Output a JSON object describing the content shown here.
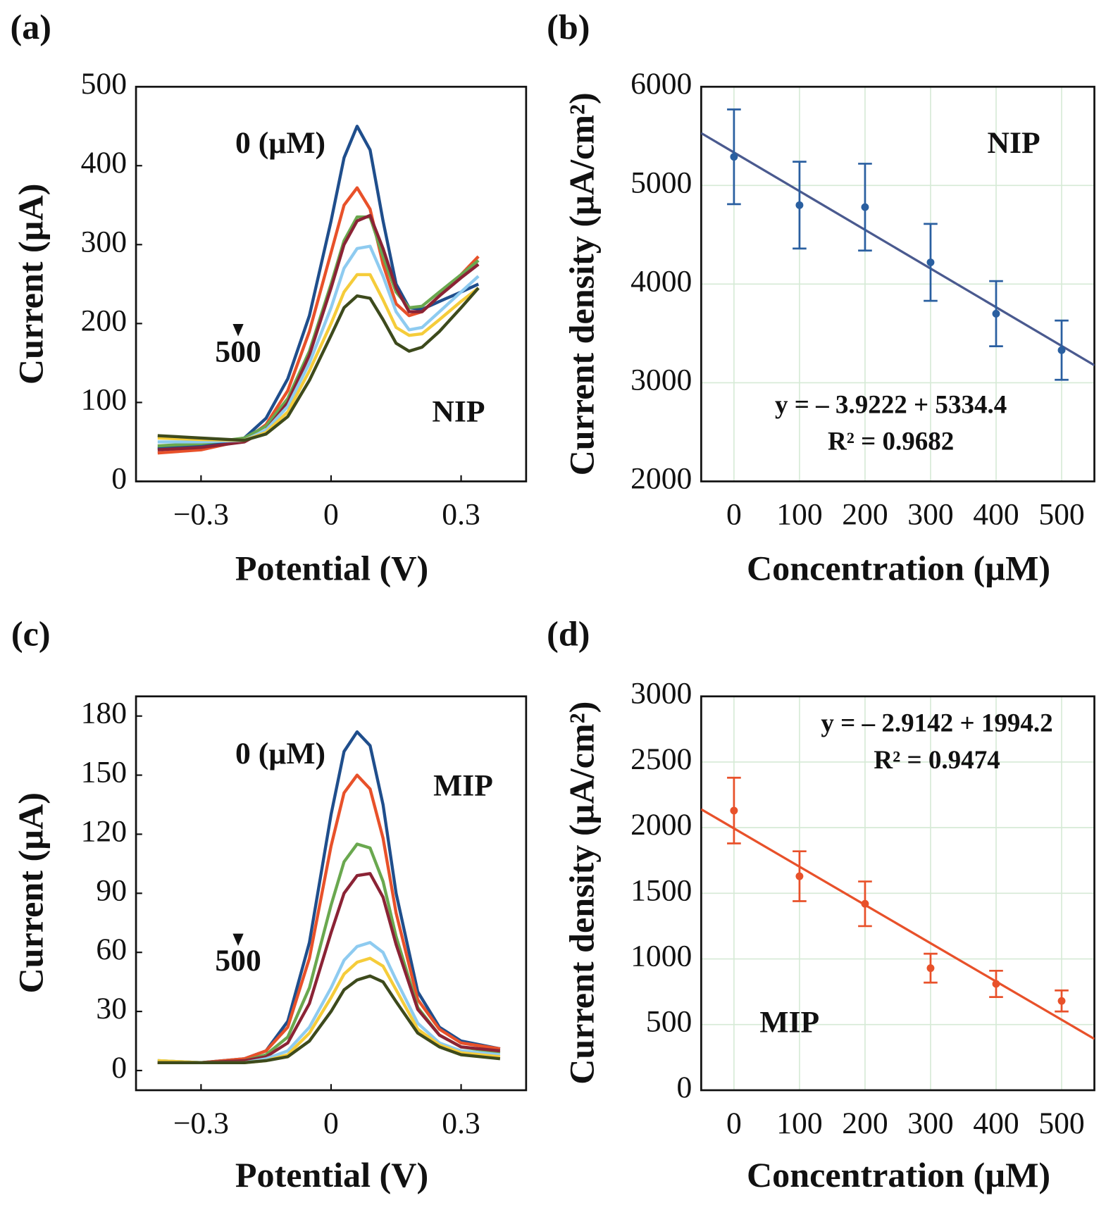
{
  "chart_data": [
    {
      "type": "line",
      "panel_label": "(a)",
      "xlabel": "Potential (V)",
      "ylabel": "Current (µA)",
      "xlim": [
        -0.45,
        0.45
      ],
      "ylim": [
        0,
        500
      ],
      "xticks": [
        {
          "value": -0.3,
          "label": "−0.3"
        },
        0,
        0.3
      ],
      "yticks": [
        0,
        100,
        200,
        300,
        400,
        500
      ],
      "annotations": [
        "0 (µM)",
        "500",
        "NIP"
      ],
      "x": [
        -0.4,
        -0.3,
        -0.2,
        -0.15,
        -0.1,
        -0.05,
        0,
        0.03,
        0.06,
        0.09,
        0.12,
        0.15,
        0.18,
        0.21,
        0.25,
        0.3,
        0.34
      ],
      "series": [
        {
          "color": "#1f4e8c",
          "values": [
            42,
            45,
            55,
            80,
            130,
            210,
            330,
            410,
            450,
            420,
            330,
            250,
            220,
            218,
            228,
            240,
            250
          ]
        },
        {
          "color": "#e8512a",
          "values": [
            36,
            40,
            52,
            72,
            115,
            190,
            290,
            350,
            372,
            345,
            275,
            225,
            210,
            215,
            235,
            262,
            285
          ]
        },
        {
          "color": "#6aa84f",
          "values": [
            45,
            48,
            55,
            70,
            105,
            165,
            250,
            305,
            335,
            335,
            285,
            240,
            220,
            222,
            240,
            262,
            280
          ]
        },
        {
          "color": "#8b2335",
          "values": [
            40,
            43,
            50,
            65,
            100,
            160,
            245,
            300,
            330,
            337,
            295,
            245,
            215,
            215,
            235,
            258,
            275
          ]
        },
        {
          "color": "#8ecbf0",
          "values": [
            50,
            50,
            52,
            65,
            95,
            150,
            220,
            270,
            295,
            298,
            260,
            215,
            192,
            195,
            215,
            240,
            260
          ]
        },
        {
          "color": "#f5cc3a",
          "values": [
            55,
            53,
            52,
            62,
            88,
            140,
            200,
            240,
            262,
            262,
            230,
            195,
            185,
            187,
            205,
            228,
            245
          ]
        },
        {
          "color": "#3d4a1c",
          "values": [
            58,
            55,
            52,
            60,
            82,
            128,
            185,
            220,
            235,
            232,
            205,
            175,
            165,
            170,
            190,
            220,
            245
          ]
        }
      ]
    },
    {
      "type": "scatter",
      "panel_label": "(b)",
      "xlabel": "Concentration (µM)",
      "ylabel": "Current density (µA/cm²)",
      "xlim": [
        -50,
        550
      ],
      "ylim": [
        2000,
        6000
      ],
      "grid": true,
      "xticks": [
        0,
        100,
        200,
        300,
        400,
        500
      ],
      "yticks": [
        2000,
        3000,
        4000,
        5000,
        6000
      ],
      "annotations": [
        "NIP",
        "y = – 3.9222 + 5334.4",
        "R² = 0.9682"
      ],
      "color": "#2a5fa0",
      "x": [
        0,
        100,
        200,
        300,
        400,
        500
      ],
      "values": [
        5290,
        4800,
        4780,
        4220,
        3700,
        3330
      ],
      "errors": [
        480,
        440,
        440,
        390,
        330,
        300
      ],
      "fit": {
        "color": "#4a5a8f",
        "x": [
          -50,
          550
        ],
        "values": [
          5530,
          3177
        ]
      }
    },
    {
      "type": "line",
      "panel_label": "(c)",
      "xlabel": "Potential (V)",
      "ylabel": "Current (µA)",
      "xlim": [
        -0.45,
        0.45
      ],
      "ylim": [
        -10,
        190
      ],
      "xticks": [
        {
          "value": -0.3,
          "label": "−0.3"
        },
        0,
        0.3
      ],
      "yticks": [
        0,
        30,
        60,
        90,
        120,
        150,
        180
      ],
      "annotations": [
        "0 (µM)",
        "500",
        "MIP"
      ],
      "x": [
        -0.4,
        -0.3,
        -0.2,
        -0.15,
        -0.1,
        -0.05,
        0,
        0.03,
        0.06,
        0.09,
        0.12,
        0.15,
        0.2,
        0.25,
        0.3,
        0.39
      ],
      "series": [
        {
          "color": "#1f4e8c",
          "values": [
            4,
            4,
            6,
            10,
            25,
            65,
            130,
            162,
            172,
            165,
            135,
            90,
            40,
            22,
            15,
            11
          ]
        },
        {
          "color": "#e8512a",
          "values": [
            4,
            4,
            6,
            10,
            22,
            57,
            114,
            141,
            150,
            143,
            118,
            80,
            36,
            21,
            14,
            11
          ]
        },
        {
          "color": "#6aa84f",
          "values": [
            5,
            4,
            5,
            8,
            17,
            42,
            84,
            106,
            115,
            113,
            96,
            68,
            32,
            18,
            12,
            9
          ]
        },
        {
          "color": "#8b2335",
          "values": [
            4,
            4,
            5,
            7,
            14,
            34,
            70,
            90,
            99,
            100,
            88,
            64,
            31,
            18,
            12,
            10
          ]
        },
        {
          "color": "#8ecbf0",
          "values": [
            5,
            4,
            4,
            6,
            10,
            22,
            42,
            56,
            63,
            65,
            60,
            46,
            24,
            14,
            10,
            8
          ]
        },
        {
          "color": "#f5cc3a",
          "values": [
            5,
            4,
            4,
            5,
            8,
            19,
            37,
            49,
            55,
            57,
            53,
            41,
            21,
            13,
            9,
            7
          ]
        },
        {
          "color": "#3d4a1c",
          "values": [
            4,
            4,
            4,
            5,
            7,
            15,
            30,
            41,
            46,
            48,
            45,
            35,
            19,
            12,
            8,
            6
          ]
        }
      ]
    },
    {
      "type": "scatter",
      "panel_label": "(d)",
      "xlabel": "Concentration (µM)",
      "ylabel": "Current density (µA/cm²)",
      "xlim": [
        -50,
        550
      ],
      "ylim": [
        0,
        3000
      ],
      "grid": true,
      "xticks": [
        0,
        100,
        200,
        300,
        400,
        500
      ],
      "yticks": [
        0,
        500,
        1000,
        1500,
        2000,
        2500,
        3000
      ],
      "annotations": [
        "y = – 2.9142 + 1994.2",
        "R² = 0.9474",
        "MIP"
      ],
      "color": "#e8512a",
      "x": [
        0,
        100,
        200,
        300,
        400,
        500
      ],
      "values": [
        2130,
        1630,
        1420,
        930,
        810,
        680
      ],
      "errors": [
        250,
        190,
        170,
        110,
        100,
        80
      ],
      "fit": {
        "color": "#e8512a",
        "x": [
          -50,
          550
        ],
        "values": [
          2140,
          391
        ]
      }
    }
  ]
}
